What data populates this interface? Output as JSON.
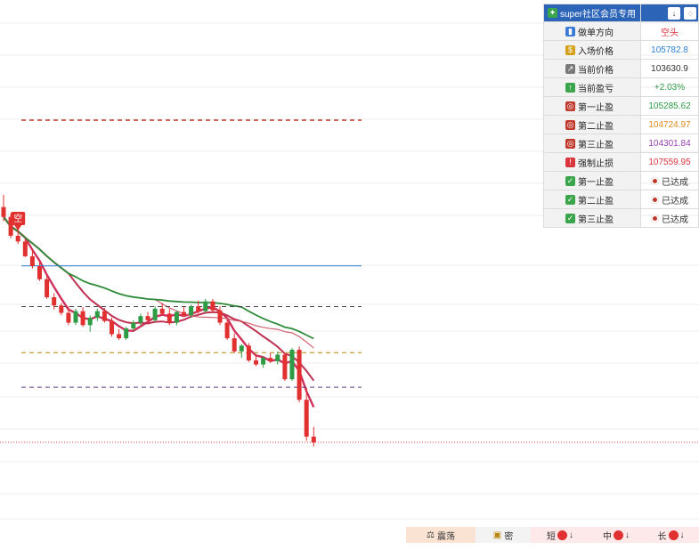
{
  "panel": {
    "header": {
      "title": "super社区会员专用",
      "icon": "leaf-icon",
      "btn1": "↓",
      "btn2": "◌"
    },
    "rows": [
      {
        "icon": "bar-chart-icon",
        "label": "做单方向",
        "value": "空头",
        "color": "#d9363e"
      },
      {
        "icon": "money-bag-icon",
        "label": "入场价格",
        "value": "105782.8",
        "color": "#2b7fd1"
      },
      {
        "icon": "trend-chart-icon",
        "label": "当前价格",
        "value": "103630.9",
        "color": "#333333"
      },
      {
        "icon": "chart-up-icon",
        "label": "当前盈亏",
        "value": "+2.03%",
        "color": "#2e9b45"
      },
      {
        "icon": "target-icon",
        "label": "第一止盈",
        "value": "105285.62",
        "color": "#2e9b45"
      },
      {
        "icon": "target-icon",
        "label": "第二止盈",
        "value": "104724.97",
        "color": "#e08a1e"
      },
      {
        "icon": "target-icon",
        "label": "第三止盈",
        "value": "104301.84",
        "color": "#9b3fb5"
      },
      {
        "icon": "alarm-icon",
        "label": "强制止损",
        "value": "107559.95",
        "color": "#d9363e"
      },
      {
        "icon": "check-icon",
        "label": "第一止盈",
        "value": "已达成",
        "color": "#333333",
        "reached": true
      },
      {
        "icon": "check-icon",
        "label": "第二止盈",
        "value": "已达成",
        "color": "#333333",
        "reached": true
      },
      {
        "icon": "check-icon",
        "label": "第三止盈",
        "value": "已达成",
        "color": "#333333",
        "reached": true
      }
    ]
  },
  "toolbar": {
    "items": [
      {
        "label": "震荡",
        "icon": "scale-icon"
      },
      {
        "label": "密",
        "icon": "lock-icon"
      },
      {
        "label": "短",
        "arrow": "↓"
      },
      {
        "label": "中",
        "arrow": "↓"
      },
      {
        "label": "长",
        "arrow": "↓"
      }
    ]
  },
  "chart_data": {
    "type": "candlestick",
    "marker": {
      "label": "空",
      "color": "#e03030"
    },
    "colors": {
      "up": "#2e9b45",
      "down": "#e03030"
    },
    "lines": [
      {
        "name": "stop_loss",
        "value": 107559.95,
        "style": "dashed",
        "color": "#c0392b"
      },
      {
        "name": "entry",
        "value": 105782.8,
        "style": "solid",
        "color": "#2b7fd1"
      },
      {
        "name": "tp1",
        "value": 105285.62,
        "style": "dashed",
        "color": "#444444"
      },
      {
        "name": "tp2",
        "value": 104724.97,
        "style": "dashed",
        "color": "#b8860b"
      },
      {
        "name": "tp3",
        "value": 104301.84,
        "style": "dashed",
        "color": "#5a3e78"
      },
      {
        "name": "current",
        "value": 103630.9,
        "style": "dotted",
        "color": "#d9363e"
      }
    ],
    "candles": [
      [
        106500,
        106650,
        106330,
        106380
      ],
      [
        106380,
        106420,
        106120,
        106150
      ],
      [
        106150,
        106230,
        106050,
        106080
      ],
      [
        106080,
        106120,
        105890,
        105900
      ],
      [
        105900,
        105980,
        105750,
        105780
      ],
      [
        105780,
        105830,
        105600,
        105620
      ],
      [
        105620,
        105660,
        105380,
        105400
      ],
      [
        105400,
        105450,
        105250,
        105300
      ],
      [
        105300,
        105330,
        105180,
        105210
      ],
      [
        105210,
        105290,
        105060,
        105090
      ],
      [
        105090,
        105260,
        105060,
        105230
      ],
      [
        105230,
        105280,
        105040,
        105060
      ],
      [
        105060,
        105180,
        104980,
        105150
      ],
      [
        105150,
        105260,
        105110,
        105230
      ],
      [
        105230,
        105270,
        105090,
        105110
      ],
      [
        105110,
        105150,
        104920,
        104950
      ],
      [
        104950,
        105010,
        104880,
        104900
      ],
      [
        104900,
        105040,
        104880,
        105020
      ],
      [
        105020,
        105120,
        104990,
        105090
      ],
      [
        105090,
        105200,
        105050,
        105170
      ],
      [
        105170,
        105220,
        105090,
        105120
      ],
      [
        105120,
        105290,
        105100,
        105260
      ],
      [
        105260,
        105330,
        105180,
        105200
      ],
      [
        105200,
        105260,
        105060,
        105090
      ],
      [
        105090,
        105240,
        105060,
        105220
      ],
      [
        105220,
        105280,
        105160,
        105180
      ],
      [
        105180,
        105310,
        105150,
        105290
      ],
      [
        105290,
        105360,
        105200,
        105230
      ],
      [
        105230,
        105380,
        105210,
        105350
      ],
      [
        105350,
        105380,
        105210,
        105240
      ],
      [
        105240,
        105290,
        105060,
        105090
      ],
      [
        105090,
        105130,
        104880,
        104900
      ],
      [
        104900,
        104960,
        104720,
        104740
      ],
      [
        104740,
        104830,
        104660,
        104810
      ],
      [
        104810,
        104840,
        104610,
        104630
      ],
      [
        104630,
        104700,
        104560,
        104580
      ],
      [
        104580,
        104680,
        104540,
        104660
      ],
      [
        104660,
        104720,
        104600,
        104620
      ],
      [
        104620,
        104740,
        104580,
        104700
      ],
      [
        104700,
        104720,
        104380,
        104400
      ],
      [
        104400,
        104780,
        104380,
        104760
      ],
      [
        104760,
        104800,
        104120,
        104150
      ],
      [
        104150,
        104300,
        103650,
        103700
      ],
      [
        103700,
        103820,
        103580,
        103630
      ]
    ]
  }
}
